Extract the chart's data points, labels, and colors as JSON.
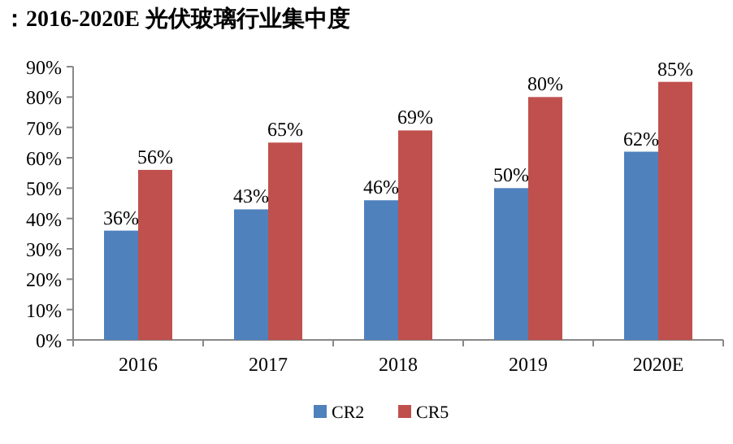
{
  "chart_data": {
    "type": "bar",
    "title": "：2016-2020E 光伏玻璃行业集中度",
    "categories": [
      "2016",
      "2017",
      "2018",
      "2019",
      "2020E"
    ],
    "series": [
      {
        "name": "CR2",
        "color": "#4f81bd",
        "values": [
          36,
          43,
          46,
          50,
          62
        ],
        "value_labels": [
          "36%",
          "43%",
          "46%",
          "50%",
          "62%"
        ]
      },
      {
        "name": "CR5",
        "color": "#c0504d",
        "values": [
          56,
          65,
          69,
          80,
          85
        ],
        "value_labels": [
          "56%",
          "65%",
          "69%",
          "80%",
          "85%"
        ]
      }
    ],
    "ylim": [
      0,
      90
    ],
    "yticks": [
      {
        "value": 0,
        "label": "0%"
      },
      {
        "value": 10,
        "label": "10%"
      },
      {
        "value": 20,
        "label": "20%"
      },
      {
        "value": 30,
        "label": "30%"
      },
      {
        "value": 40,
        "label": "40%"
      },
      {
        "value": 50,
        "label": "50%"
      },
      {
        "value": 60,
        "label": "60%"
      },
      {
        "value": 70,
        "label": "70%"
      },
      {
        "value": 80,
        "label": "80%"
      },
      {
        "value": 90,
        "label": "90%"
      }
    ],
    "legend": "bottom"
  }
}
